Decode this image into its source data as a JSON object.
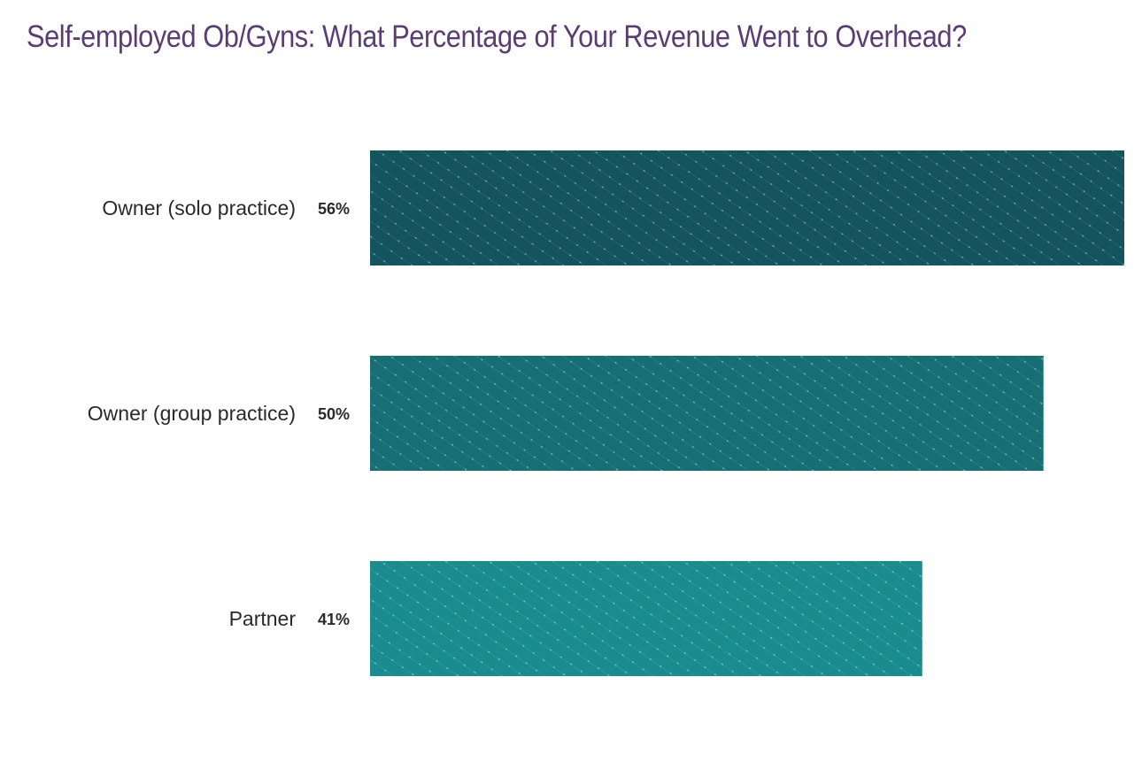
{
  "chart_data": {
    "type": "bar",
    "orientation": "horizontal",
    "title": "Self-employed Ob/Gyns: What Percentage of Your Revenue Went to Overhead?",
    "categories": [
      "Owner (solo practice)",
      "Owner (group practice)",
      "Partner"
    ],
    "values": [
      56,
      50,
      41
    ],
    "value_labels": [
      "56%",
      "50%",
      "41%"
    ],
    "unit": "%",
    "xlim": [
      0,
      56
    ],
    "grid": false,
    "colors": [
      "#13545f",
      "#176f75",
      "#1a8c8f"
    ],
    "title_color": "#5b3c74"
  }
}
